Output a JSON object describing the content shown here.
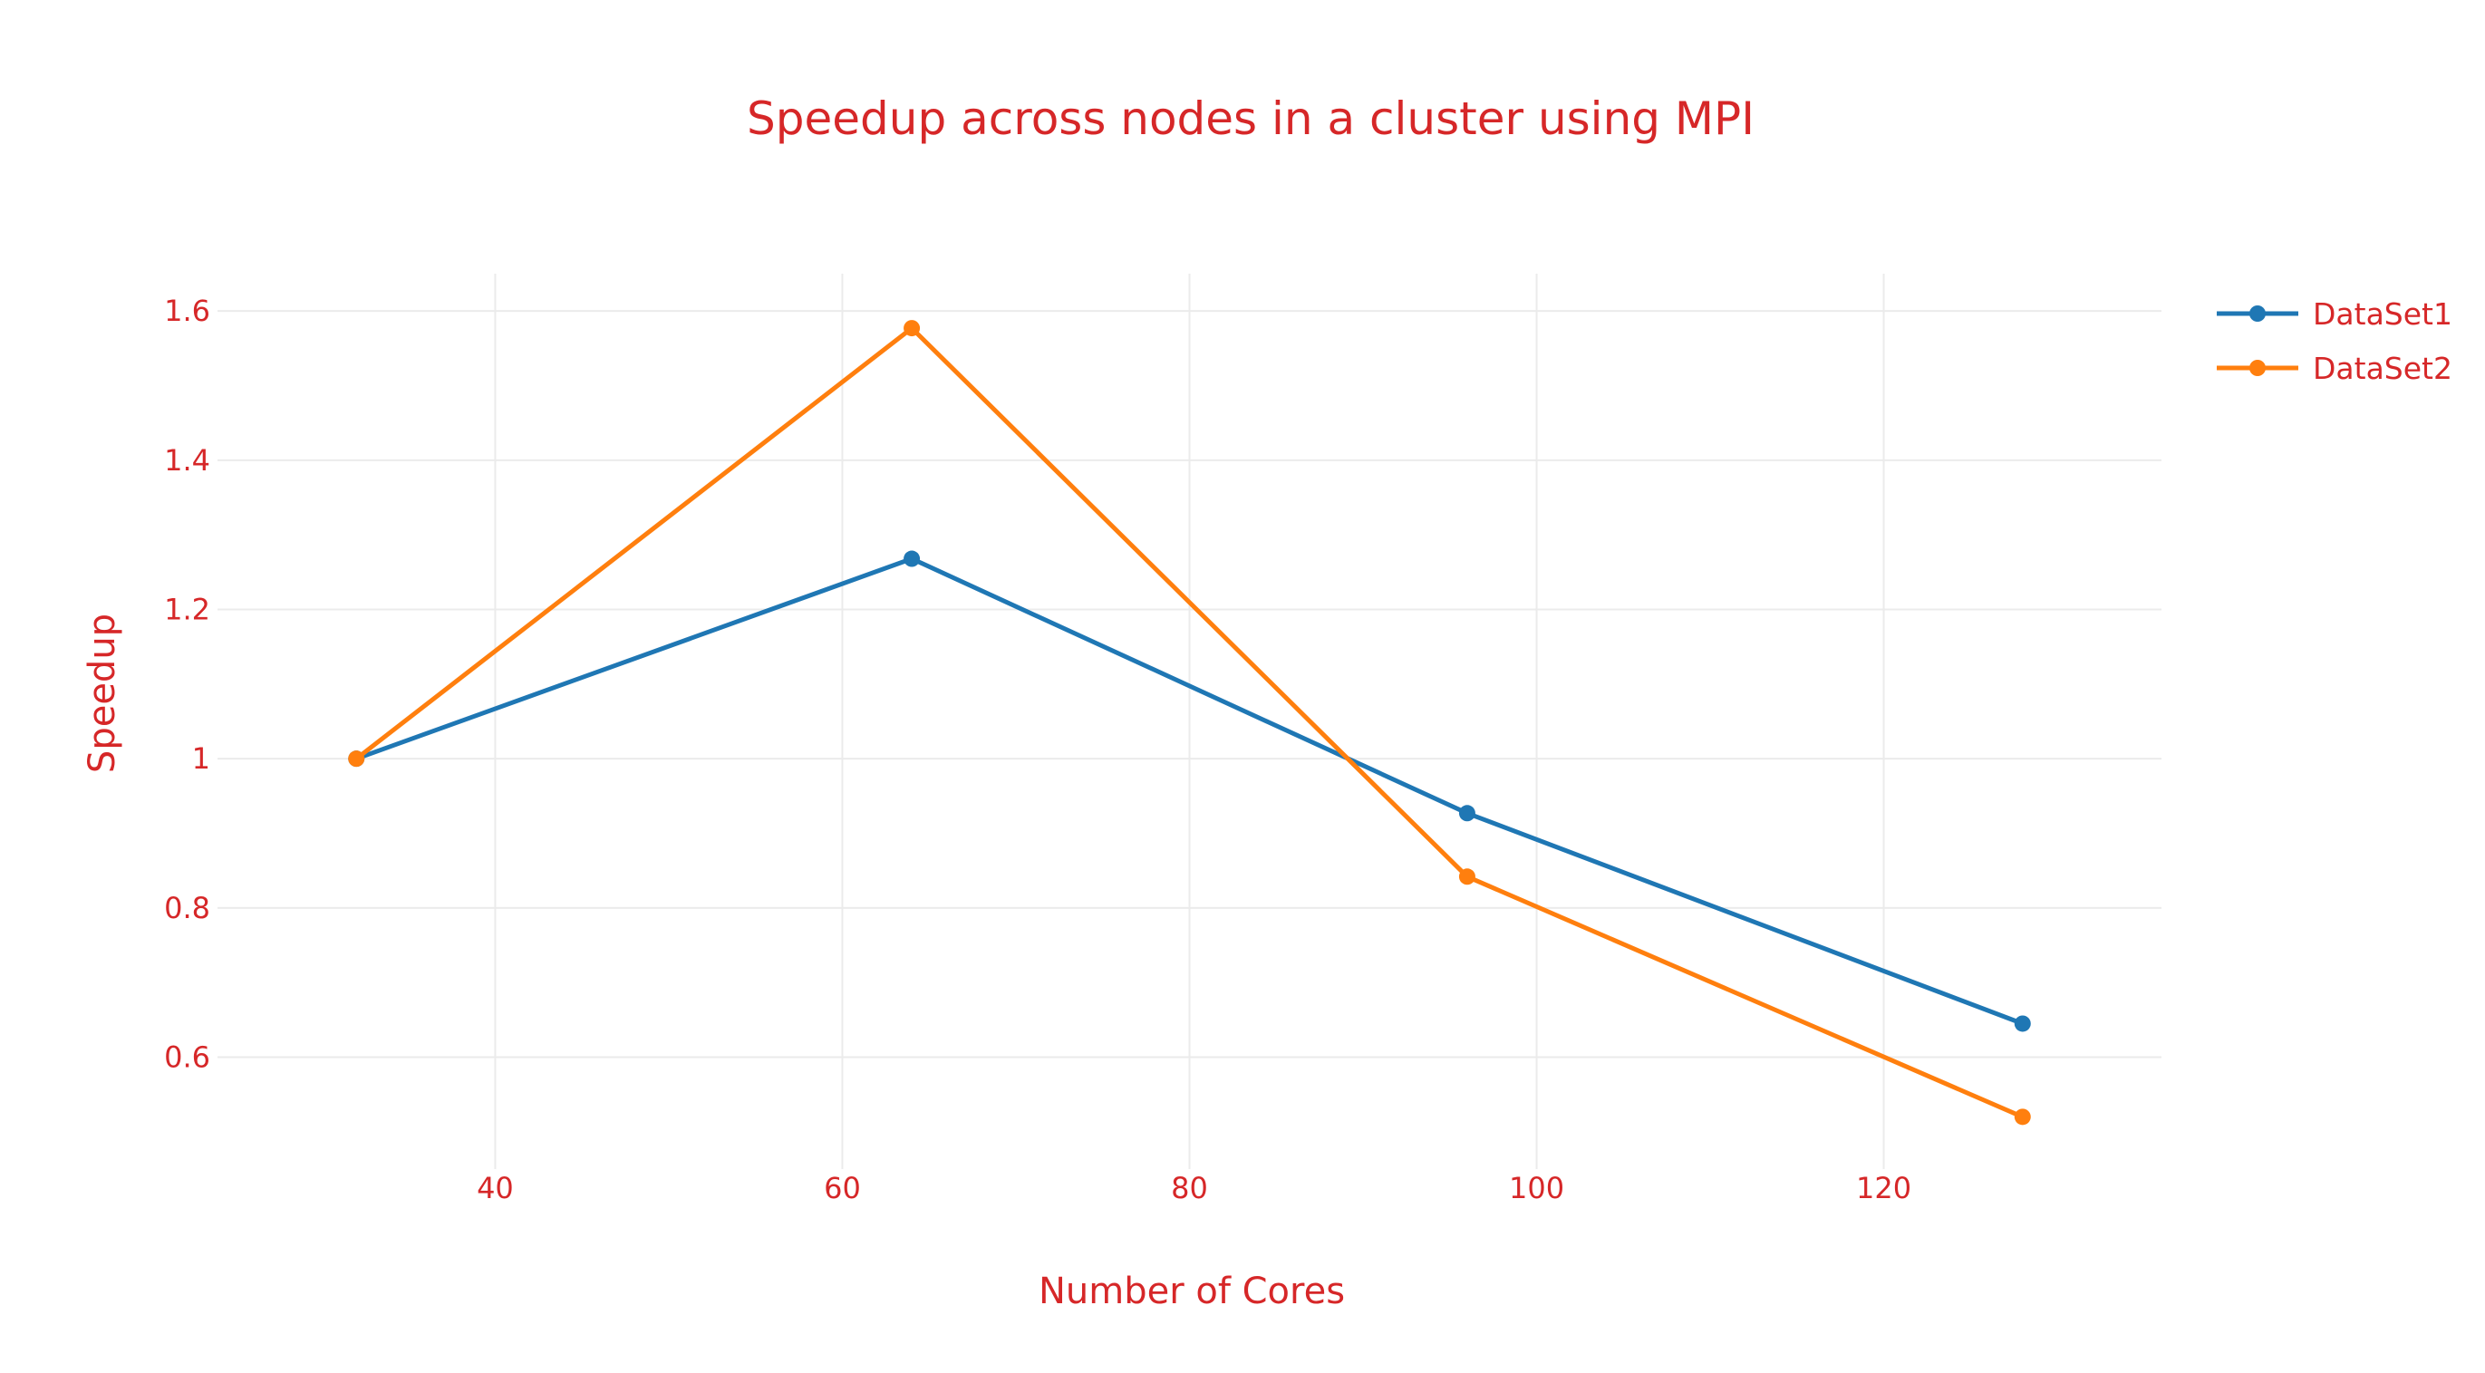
{
  "chart_data": {
    "type": "line",
    "title": "Speedup across nodes in a cluster using MPI",
    "xlabel": "Number of Cores",
    "ylabel": "Speedup",
    "x": [
      32,
      64,
      96,
      128
    ],
    "series": [
      {
        "name": "DataSet1",
        "color": "#1f77b4",
        "values": [
          1.0,
          1.268,
          0.927,
          0.645
        ]
      },
      {
        "name": "DataSet2",
        "color": "#ff7f0e",
        "values": [
          1.0,
          1.577,
          0.842,
          0.52
        ]
      }
    ],
    "xlim": [
      24,
      136
    ],
    "ylim": [
      0.45,
      1.65
    ],
    "xticks": [
      40,
      60,
      80,
      100,
      120
    ],
    "xtick_labels": [
      "40",
      "60",
      "80",
      "100",
      "120"
    ],
    "yticks": [
      0.6,
      0.8,
      1.0,
      1.2,
      1.4,
      1.6
    ],
    "ytick_labels": [
      "0.6",
      "0.8",
      "1",
      "1.2",
      "1.4",
      "1.6"
    ],
    "grid": true,
    "legend_position": "top-right",
    "text_color": "#d62728"
  }
}
